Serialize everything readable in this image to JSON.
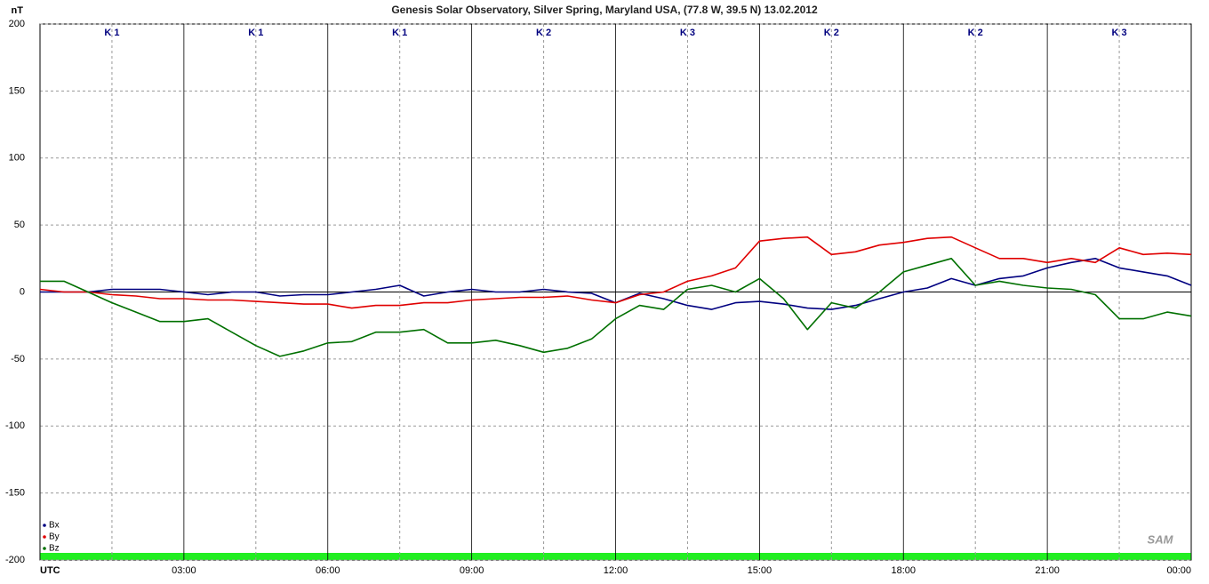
{
  "chart_data": {
    "type": "line",
    "title": "Genesis Solar Observatory, Silver Spring, Maryland USA, (77.8 W, 39.5 N)  13.02.2012",
    "y_label": "nT",
    "logo": "SAM",
    "x": [
      0,
      0.5,
      1,
      1.5,
      2,
      2.5,
      3,
      3.5,
      4,
      4.5,
      5,
      5.5,
      6,
      6.5,
      7,
      7.5,
      8,
      8.5,
      9,
      9.5,
      10,
      10.5,
      11,
      11.5,
      12,
      12.5,
      13,
      13.5,
      14,
      14.5,
      15,
      15.5,
      16,
      16.5,
      17,
      17.5,
      18,
      18.5,
      19,
      19.5,
      20,
      20.5,
      21,
      21.5,
      22,
      22.5,
      23,
      23.5,
      24
    ],
    "series": [
      {
        "name": "Bx",
        "color": "#000080",
        "values": [
          0,
          0,
          0,
          2,
          2,
          2,
          0,
          -2,
          0,
          0,
          -3,
          -2,
          -2,
          0,
          2,
          5,
          -3,
          0,
          2,
          0,
          0,
          2,
          0,
          -1,
          -8,
          -1,
          -5,
          -10,
          -13,
          -8,
          -7,
          -9,
          -12,
          -13,
          -10,
          -5,
          0,
          3,
          10,
          5,
          10,
          12,
          18,
          22,
          25,
          18,
          15,
          12,
          5
        ]
      },
      {
        "name": "By",
        "color": "#e00000",
        "values": [
          2,
          0,
          0,
          -2,
          -3,
          -5,
          -5,
          -6,
          -6,
          -7,
          -8,
          -9,
          -9,
          -12,
          -10,
          -10,
          -8,
          -8,
          -6,
          -5,
          -4,
          -4,
          -3,
          -6,
          -8,
          -2,
          0,
          8,
          12,
          18,
          38,
          40,
          41,
          28,
          30,
          35,
          37,
          40,
          41,
          33,
          25,
          25,
          22,
          25,
          22,
          33,
          28,
          29,
          28
        ]
      },
      {
        "name": "Bz",
        "color": "#007000",
        "values": [
          8,
          8,
          0,
          -8,
          -15,
          -22,
          -22,
          -20,
          -30,
          -40,
          -48,
          -44,
          -38,
          -37,
          -30,
          -30,
          -28,
          -38,
          -38,
          -36,
          -40,
          -45,
          -42,
          -35,
          -20,
          -10,
          -13,
          2,
          5,
          0,
          10,
          -5,
          -28,
          -8,
          -12,
          0,
          15,
          20,
          25,
          5,
          8,
          5,
          3,
          2,
          -2,
          -20,
          -20,
          -15,
          -18
        ]
      }
    ],
    "xlim": [
      0,
      24
    ],
    "ylim": [
      -200,
      200
    ],
    "yticks": [
      200,
      150,
      100,
      50,
      0,
      -50,
      -100,
      -150,
      -200
    ],
    "xticks": [
      {
        "value": 0,
        "label": "UTC"
      },
      {
        "value": 3,
        "label": "03:00"
      },
      {
        "value": 6,
        "label": "06:00"
      },
      {
        "value": 9,
        "label": "09:00"
      },
      {
        "value": 12,
        "label": "12:00"
      },
      {
        "value": 15,
        "label": "15:00"
      },
      {
        "value": 18,
        "label": "18:00"
      },
      {
        "value": 21,
        "label": "21:00"
      },
      {
        "value": 24,
        "label": "00:00"
      }
    ],
    "xminorticks": [
      1.5,
      4.5,
      7.5,
      10.5,
      13.5,
      16.5,
      19.5,
      22.5
    ],
    "k_index": {
      "x": [
        1.5,
        4.5,
        7.5,
        10.5,
        13.5,
        16.5,
        19.5,
        22.5
      ],
      "labels": [
        "K 1",
        "K 1",
        "K 1",
        "K 2",
        "K 3",
        "K 2",
        "K 2",
        "K 3"
      ]
    },
    "grid": true,
    "legend": "lower left"
  }
}
